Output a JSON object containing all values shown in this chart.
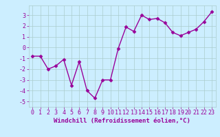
{
  "x": [
    0,
    1,
    2,
    3,
    4,
    5,
    6,
    7,
    8,
    9,
    10,
    11,
    12,
    13,
    14,
    15,
    16,
    17,
    18,
    19,
    20,
    21,
    22,
    23
  ],
  "y": [
    -0.8,
    -0.8,
    -2.0,
    -1.7,
    -1.1,
    -3.5,
    -1.3,
    -4.0,
    -4.7,
    -3.0,
    -3.0,
    -0.1,
    1.9,
    1.5,
    3.0,
    2.6,
    2.7,
    2.3,
    1.4,
    1.1,
    1.4,
    1.7,
    2.4,
    3.3
  ],
  "line_color": "#990099",
  "marker": "D",
  "markersize": 2.5,
  "linewidth": 1.0,
  "bg_color": "#cceeff",
  "grid_color": "#aacccc",
  "xlabel": "Windchill (Refroidissement éolien,°C)",
  "xlabel_fontsize": 6.5,
  "tick_fontsize": 6,
  "xlim": [
    -0.5,
    23.5
  ],
  "ylim": [
    -5.5,
    3.9
  ],
  "yticks": [
    -5,
    -4,
    -3,
    -2,
    -1,
    0,
    1,
    2,
    3
  ],
  "xticks": [
    0,
    1,
    2,
    3,
    4,
    5,
    6,
    7,
    8,
    9,
    10,
    11,
    12,
    13,
    14,
    15,
    16,
    17,
    18,
    19,
    20,
    21,
    22,
    23
  ]
}
